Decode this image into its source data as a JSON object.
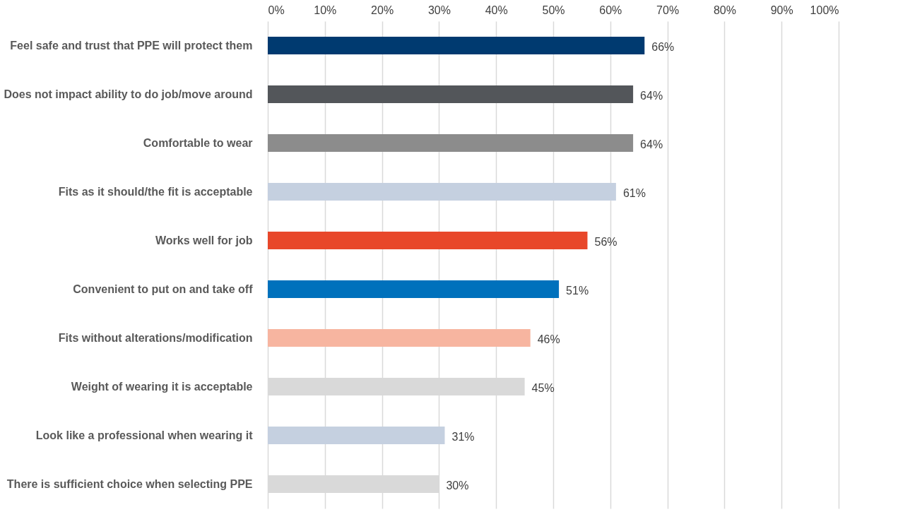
{
  "chart_data": {
    "type": "bar",
    "orientation": "horizontal",
    "categories": [
      "Feel safe and trust that PPE will protect them",
      "Does not impact ability to do job/move around",
      "Comfortable to wear",
      "Fits as it should/the fit is acceptable",
      "Works well for job",
      "Convenient to put on and take off",
      "Fits without alterations/modification",
      "Weight of wearing it is acceptable",
      "Look like a professional when wearing it",
      "There is sufficient choice when selecting PPE"
    ],
    "values": [
      66,
      64,
      64,
      61,
      56,
      51,
      46,
      45,
      31,
      30
    ],
    "colors": [
      "#003a70",
      "#53565a",
      "#8c8c8c",
      "#c5d0e0",
      "#e8472a",
      "#0071bc",
      "#f7b5a0",
      "#d9d9d9",
      "#c5d0e0",
      "#d9d9d9"
    ],
    "value_labels": [
      "66%",
      "64%",
      "64%",
      "61%",
      "56%",
      "51%",
      "46%",
      "45%",
      "31%",
      "30%"
    ],
    "xlim": [
      0,
      100
    ],
    "xticks": [
      {
        "value": 0,
        "label": "0%"
      },
      {
        "value": 10,
        "label": "10%"
      },
      {
        "value": 20,
        "label": "20%"
      },
      {
        "value": 30,
        "label": "30%"
      },
      {
        "value": 40,
        "label": "40%"
      },
      {
        "value": 50,
        "label": "50%"
      },
      {
        "value": 60,
        "label": "60%"
      },
      {
        "value": 70,
        "label": "70%"
      },
      {
        "value": 80,
        "label": "80%"
      },
      {
        "value": 90,
        "label": "90%"
      },
      {
        "value": 100,
        "label": "100%"
      }
    ],
    "grid": "x"
  }
}
